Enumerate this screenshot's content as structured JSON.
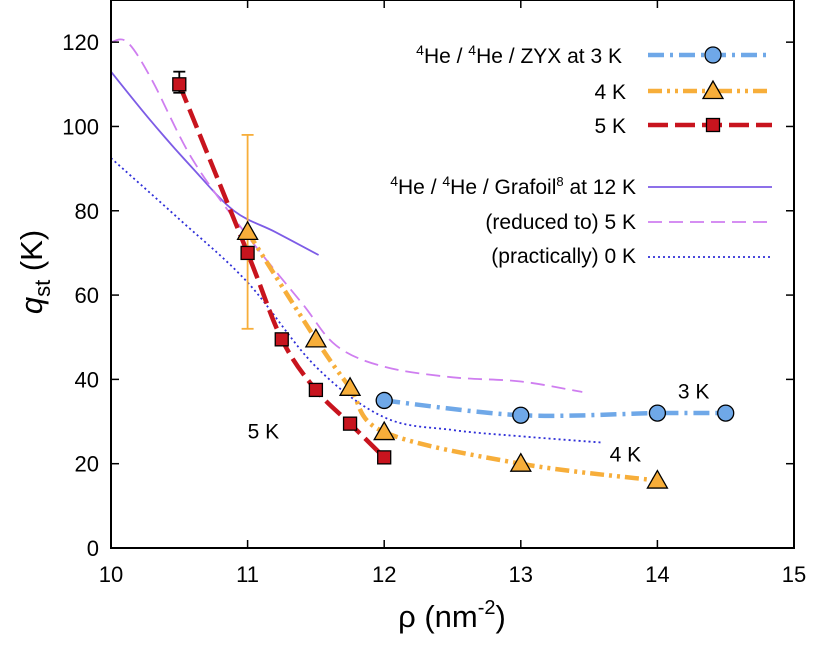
{
  "chart_data": {
    "type": "line",
    "xlabel": "ρ  (nm",
    "xlabel_sup": "-2",
    "xlabel_close": ")",
    "ylabel": "q",
    "ylabel_sub": "st",
    "ylabel_unit": " (K)",
    "xlim": [
      10,
      15
    ],
    "ylim": [
      0,
      130
    ],
    "xticks": [
      10,
      11,
      12,
      13,
      14,
      15
    ],
    "yticks": [
      0,
      20,
      40,
      60,
      80,
      100,
      120
    ],
    "legend": {
      "position": "top-right",
      "group1_header_sup1": "4",
      "group1_header_mid": "He / ",
      "group1_header_sup2": "4",
      "group1_header_tail": "He / ZYX at 3 K",
      "group2_header_sup1": "4",
      "group2_header_mid": "He / ",
      "group2_header_sup2": "4",
      "group2_header_tail": "He / Grafoil",
      "group2_header_ref": "8",
      "group2_header_end": " at 12 K"
    },
    "series": [
      {
        "name": "ZYX 3 K",
        "label": "3 K",
        "color": "#6fa8e8",
        "marker": "circle",
        "style": "dashdot",
        "x": [
          12.0,
          13.0,
          14.0,
          14.5
        ],
        "y": [
          35,
          31.5,
          32,
          32
        ]
      },
      {
        "name": "ZYX 4 K",
        "label": "4 K",
        "color": "#f7ae3a",
        "marker": "triangle",
        "style": "dashdotdot",
        "x": [
          11.0,
          11.5,
          11.75,
          12.0,
          13.0,
          14.0
        ],
        "y": [
          75,
          49.5,
          38,
          27.5,
          20,
          16
        ]
      },
      {
        "name": "ZYX 5 K",
        "label": "5 K",
        "color": "#c8141e",
        "marker": "square",
        "style": "dashed",
        "x": [
          10.5,
          11.0,
          11.25,
          11.5,
          11.75,
          12.0
        ],
        "y": [
          110,
          70,
          49.5,
          37.5,
          29.5,
          21.5
        ]
      },
      {
        "name": "Grafoil 12 K",
        "label": "",
        "color": "#7d5ce6",
        "marker": "none",
        "style": "solid",
        "x": [
          10.0,
          10.3,
          10.6,
          10.9,
          11.2,
          11.52
        ],
        "y": [
          113,
          101,
          90,
          80,
          75,
          69.5
        ]
      },
      {
        "name": "Grafoil reduced 5 K",
        "label": "(reduced to) 5 K",
        "color": "#cf7ef0",
        "marker": "none",
        "style": "longdash",
        "x": [
          10.0,
          10.12,
          10.3,
          10.6,
          11.0,
          11.4,
          11.65,
          12.0,
          12.5,
          13.0,
          13.45
        ],
        "y": [
          120,
          120,
          111,
          92,
          74,
          58,
          48,
          43,
          40.5,
          39.5,
          37
        ]
      },
      {
        "name": "Grafoil practically 0 K",
        "label": "(practically) 0 K",
        "color": "#2f2fd8",
        "marker": "none",
        "style": "dotted",
        "x": [
          10.0,
          10.5,
          11.0,
          11.5,
          12.0,
          12.5,
          13.0,
          13.6
        ],
        "y": [
          92.5,
          78,
          63,
          43,
          31,
          28,
          26.5,
          25
        ]
      }
    ],
    "error_bars": [
      {
        "x": 10.5,
        "y": 110,
        "low": 108,
        "high": 113,
        "color": "#000000"
      },
      {
        "x": 11.0,
        "y": 75,
        "low": 52,
        "high": 98,
        "color": "#f7ae3a"
      }
    ],
    "annotations": [
      {
        "text": "3 K",
        "x": 14.15,
        "y": 35.5,
        "color": "#000000"
      },
      {
        "text": "4 K",
        "x": 13.65,
        "y": 20.5,
        "color": "#000000"
      },
      {
        "text": "5 K",
        "x": 11.0,
        "y": 26,
        "color": "#000000"
      }
    ]
  }
}
